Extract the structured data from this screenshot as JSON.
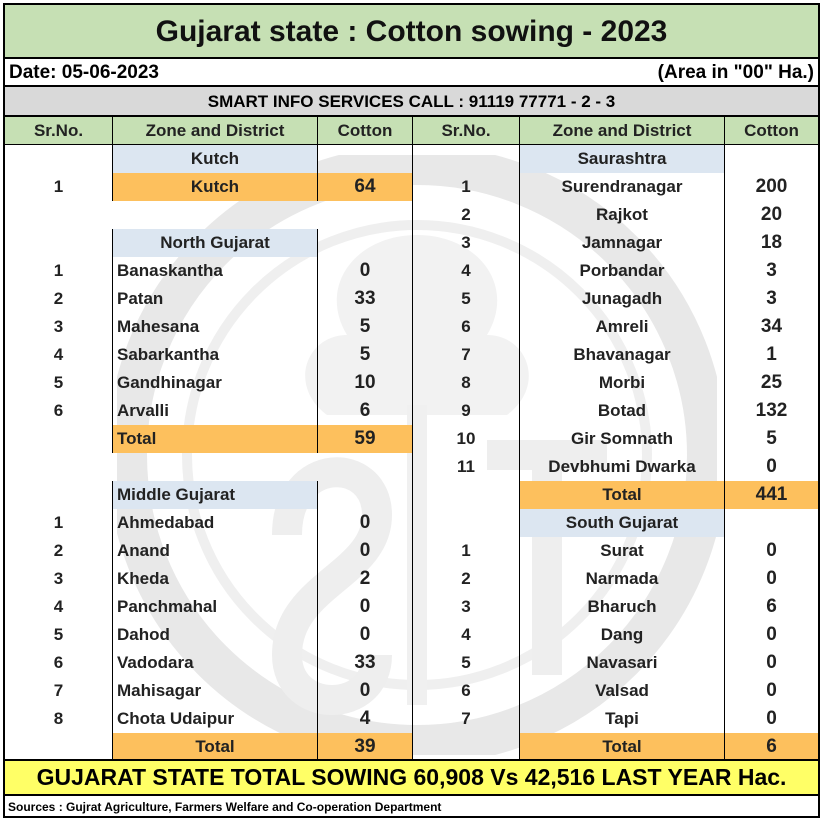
{
  "title": "Gujarat state : Cotton sowing - 2023",
  "date": "Date: 05-06-2023",
  "area_note": "(Area in \"00\" Ha.)",
  "call_line": "SMART INFO SERVICES CALL : 91119 77771 - 2 - 3",
  "headers": {
    "srno": "Sr.No.",
    "zone": "Zone and District",
    "cotton": "Cotton"
  },
  "left": {
    "kutch": {
      "zone": "Kutch",
      "rows": [
        {
          "sr": "1",
          "name": "Kutch",
          "value": "64"
        }
      ]
    },
    "north": {
      "zone": "North Gujarat",
      "rows": [
        {
          "sr": "1",
          "name": "Banaskantha",
          "value": "0"
        },
        {
          "sr": "2",
          "name": "Patan",
          "value": "33"
        },
        {
          "sr": "3",
          "name": "Mahesana",
          "value": "5"
        },
        {
          "sr": "4",
          "name": "Sabarkantha",
          "value": "5"
        },
        {
          "sr": "5",
          "name": "Gandhinagar",
          "value": "10"
        },
        {
          "sr": "6",
          "name": "Arvalli",
          "value": "6"
        }
      ],
      "total_label": "Total",
      "total": "59"
    },
    "middle": {
      "zone": "Middle Gujarat",
      "rows": [
        {
          "sr": "1",
          "name": "Ahmedabad",
          "value": "0"
        },
        {
          "sr": "2",
          "name": "Anand",
          "value": "0"
        },
        {
          "sr": "3",
          "name": "Kheda",
          "value": "2"
        },
        {
          "sr": "4",
          "name": "Panchmahal",
          "value": "0"
        },
        {
          "sr": "5",
          "name": "Dahod",
          "value": "0"
        },
        {
          "sr": "6",
          "name": "Vadodara",
          "value": "33"
        },
        {
          "sr": "7",
          "name": "Mahisagar",
          "value": "0"
        },
        {
          "sr": "8",
          "name": "Chota Udaipur",
          "value": "4"
        }
      ],
      "total_label": "Total",
      "total": "39"
    }
  },
  "right": {
    "saurashtra": {
      "zone": "Saurashtra",
      "rows": [
        {
          "sr": "1",
          "name": "Surendranagar",
          "value": "200"
        },
        {
          "sr": "2",
          "name": "Rajkot",
          "value": "20"
        },
        {
          "sr": "3",
          "name": "Jamnagar",
          "value": "18"
        },
        {
          "sr": "4",
          "name": "Porbandar",
          "value": "3"
        },
        {
          "sr": "5",
          "name": "Junagadh",
          "value": "3"
        },
        {
          "sr": "6",
          "name": "Amreli",
          "value": "34"
        },
        {
          "sr": "7",
          "name": "Bhavanagar",
          "value": "1"
        },
        {
          "sr": "8",
          "name": "Morbi",
          "value": "25"
        },
        {
          "sr": "9",
          "name": "Botad",
          "value": "132"
        },
        {
          "sr": "10",
          "name": "Gir Somnath",
          "value": "5"
        },
        {
          "sr": "11",
          "name": "Devbhumi Dwarka",
          "value": "0"
        }
      ],
      "total_label": "Total",
      "total": "441"
    },
    "south": {
      "zone": "South Gujarat",
      "rows": [
        {
          "sr": "1",
          "name": "Surat",
          "value": "0"
        },
        {
          "sr": "2",
          "name": "Narmada",
          "value": "0"
        },
        {
          "sr": "3",
          "name": "Bharuch",
          "value": "6"
        },
        {
          "sr": "4",
          "name": "Dang",
          "value": "0"
        },
        {
          "sr": "5",
          "name": "Navasari",
          "value": "0"
        },
        {
          "sr": "6",
          "name": "Valsad",
          "value": "0"
        },
        {
          "sr": "7",
          "name": "Tapi",
          "value": "0"
        }
      ],
      "total_label": "Total",
      "total": "6"
    }
  },
  "state_total": "GUJARAT STATE TOTAL SOWING 60,908 Vs 42,516 LAST YEAR Hac.",
  "source": "Sources : Gujrat Agriculture, Farmers Welfare and Co-operation Department",
  "colors": {
    "header_green": "#c6e0b4",
    "zone_blue": "#dce6f1",
    "total_orange": "#fdc05d",
    "banner_yellow": "#ffff66",
    "call_grey": "#d9d9d9"
  }
}
